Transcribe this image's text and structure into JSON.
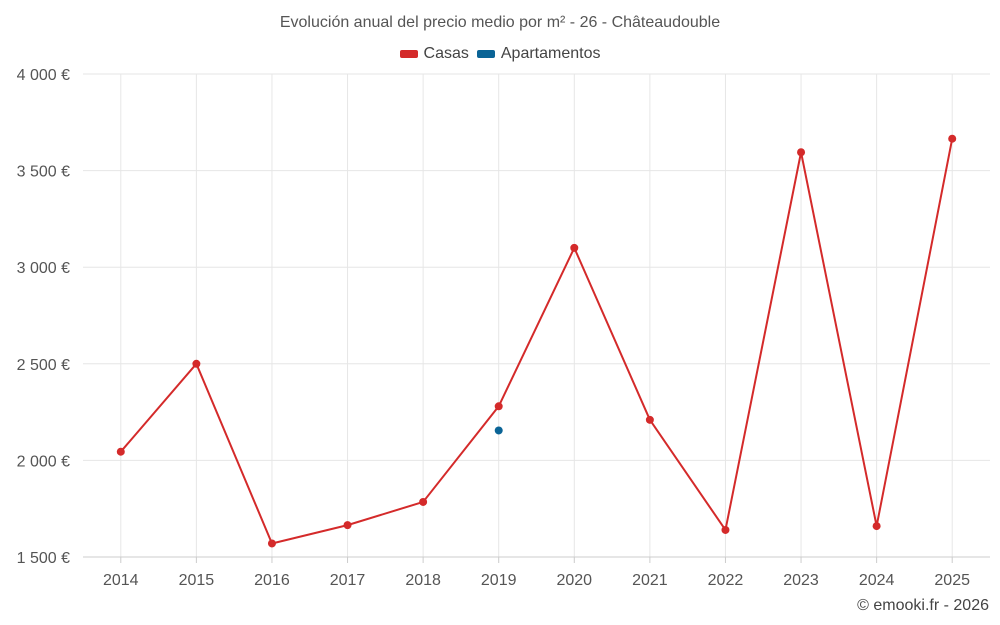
{
  "colors": {
    "casas": "#d42a2a",
    "apartamentos": "#0a6496",
    "grid": "#e6e6e6",
    "text": "#555555"
  },
  "footer": "© emooki.fr - 2026",
  "chart_data": {
    "type": "line",
    "title": "Evolución anual del precio medio por m² - 26 - Châteaudouble",
    "legend_position": "top-center",
    "grid": true,
    "categories": [
      "2014",
      "2015",
      "2016",
      "2017",
      "2018",
      "2019",
      "2020",
      "2021",
      "2022",
      "2023",
      "2024",
      "2025"
    ],
    "ylim": [
      1500,
      4000
    ],
    "yticks": [
      1500,
      2000,
      2500,
      3000,
      3500,
      4000
    ],
    "ytick_labels": [
      "1 500 €",
      "2 000 €",
      "2 500 €",
      "3 000 €",
      "3 500 €",
      "4 000 €"
    ],
    "series": [
      {
        "name": "Casas",
        "color": "#d42a2a",
        "values": [
          2045,
          2500,
          1570,
          1665,
          1785,
          2280,
          3100,
          2210,
          1640,
          3595,
          1660,
          3665
        ]
      },
      {
        "name": "Apartamentos",
        "color": "#0a6496",
        "values": [
          null,
          null,
          null,
          null,
          null,
          2155,
          null,
          null,
          null,
          null,
          null,
          null
        ]
      }
    ]
  }
}
